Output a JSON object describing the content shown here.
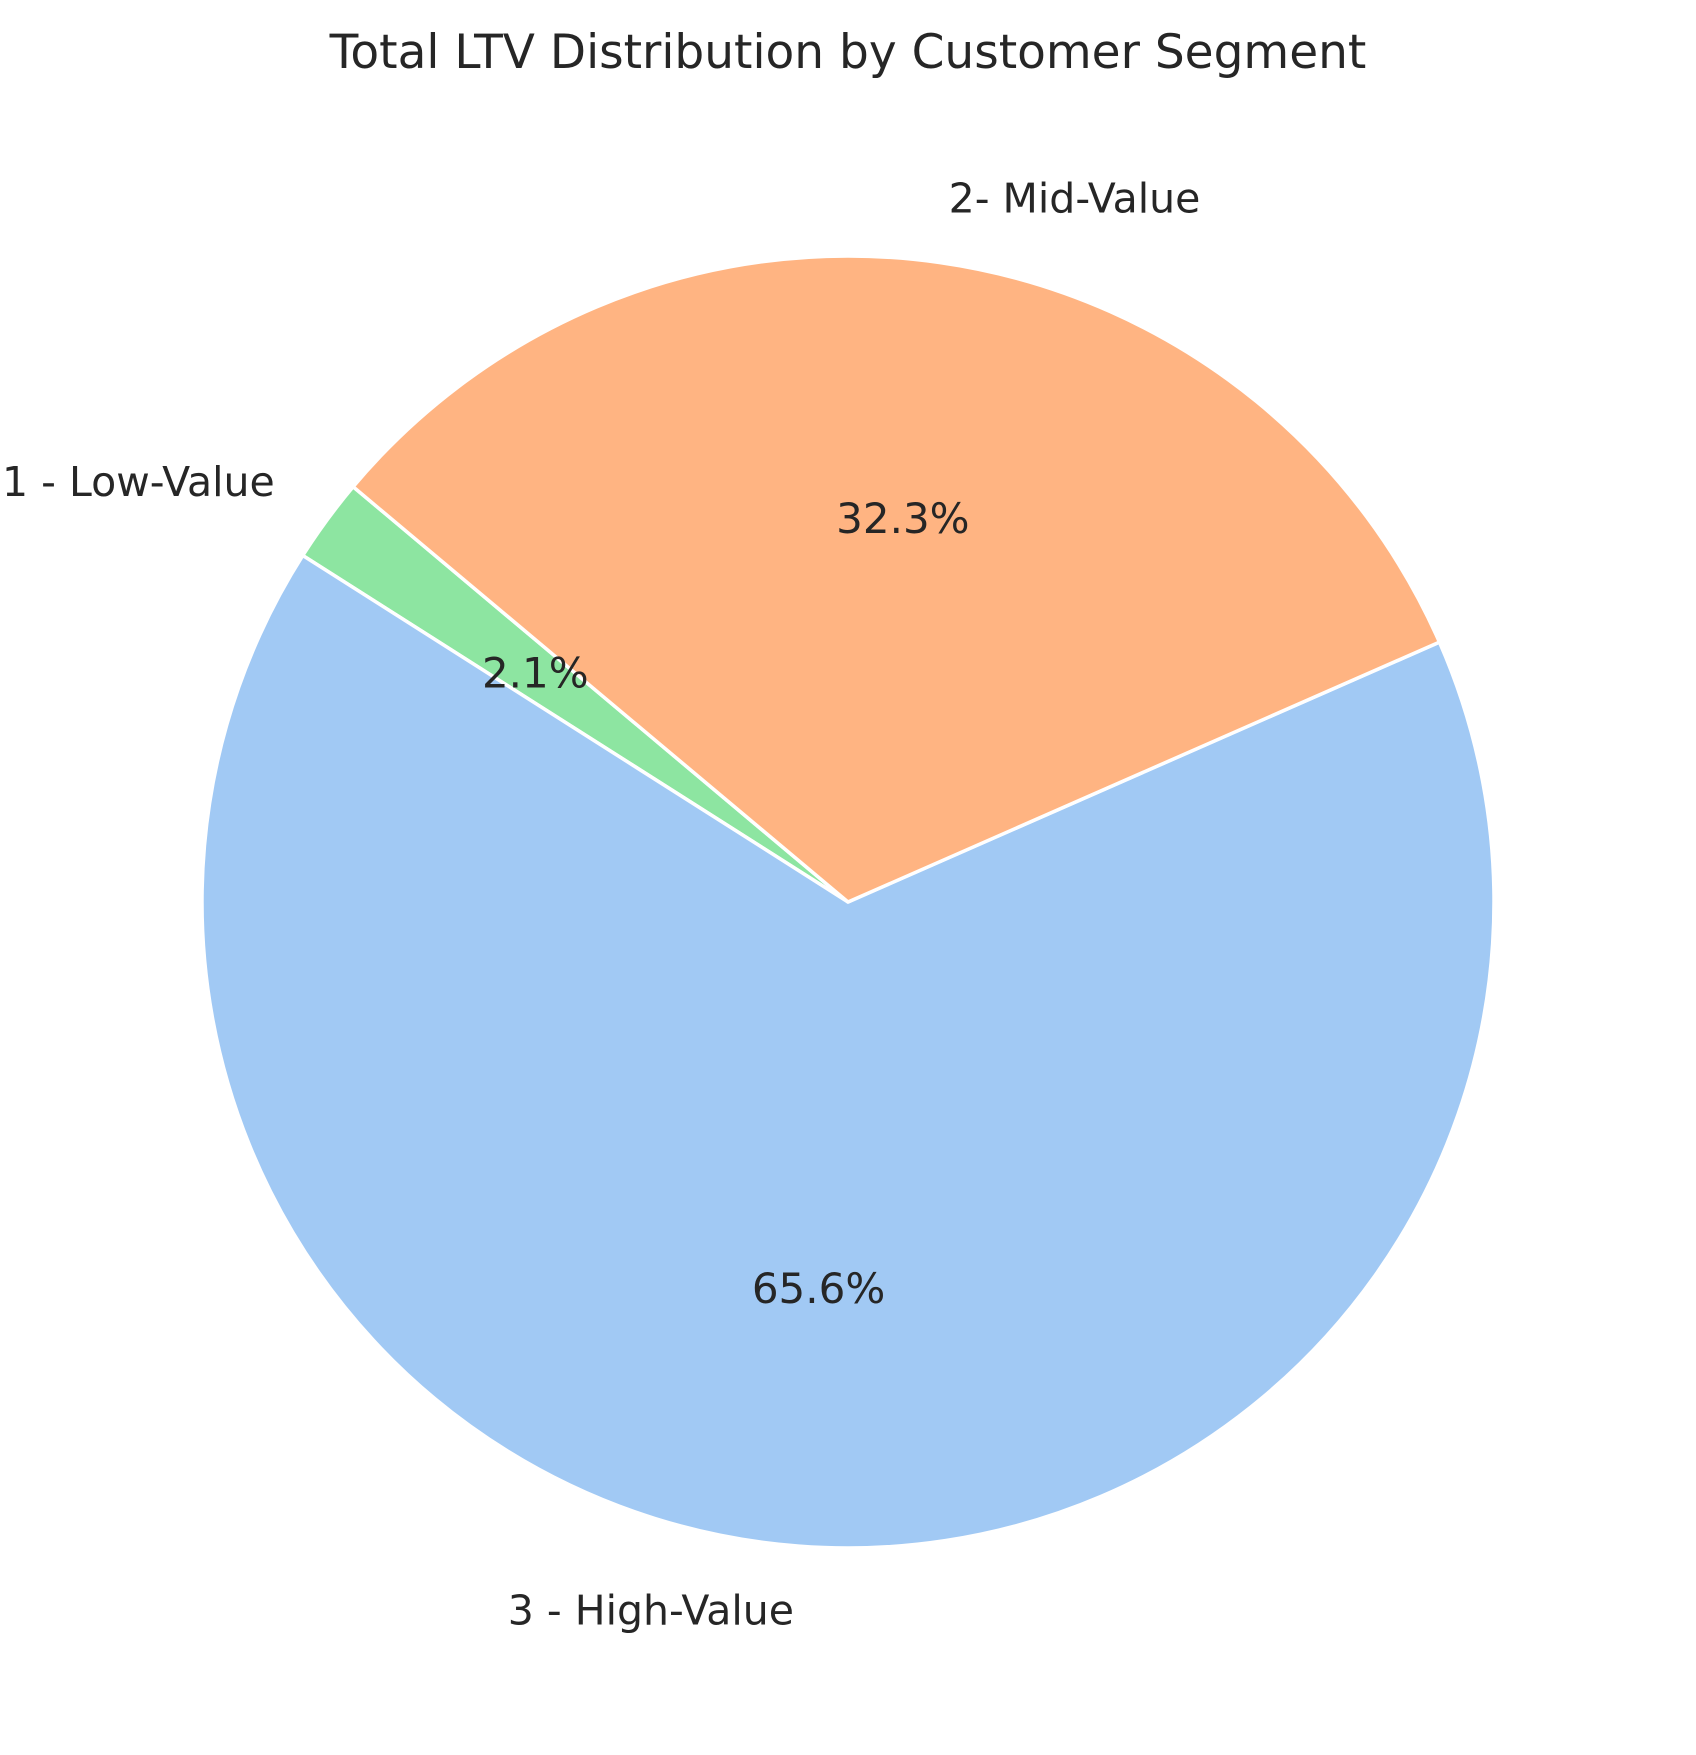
{
  "chart_data": {
    "type": "pie",
    "title": "Total LTV Distribution by Customer Segment",
    "start_angle_deg": 140,
    "direction": "counterclockwise",
    "slices": [
      {
        "label": "1 - Low-Value",
        "value": 2.1,
        "pct_label": "2.1%",
        "color": "#8de5a1"
      },
      {
        "label": "3 - High-Value",
        "value": 65.6,
        "pct_label": "65.6%",
        "color": "#a1c9f4"
      },
      {
        "label": "2- Mid-Value",
        "value": 32.3,
        "pct_label": "32.3%",
        "color": "#ffb482"
      }
    ],
    "edge_color": "#ffffff"
  }
}
